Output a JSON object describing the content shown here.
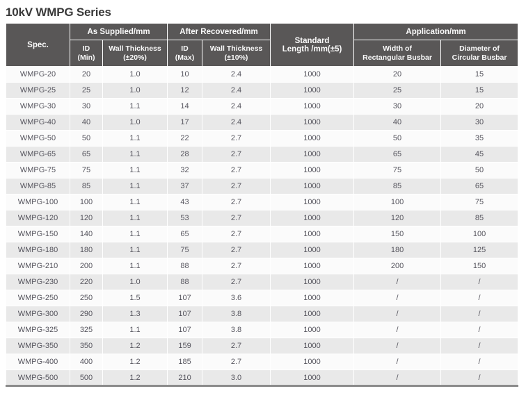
{
  "page_title": "10kV WMPG Series",
  "table": {
    "header_groups": {
      "spec": "Spec.",
      "as_supplied": "As Supplied/mm",
      "after_recovered": "After Recovered/mm",
      "standard_length": [
        "Standard",
        "Length /mm(±5)"
      ],
      "application": "Application/mm"
    },
    "sub_headers": {
      "id_min": [
        "ID",
        "(Min)"
      ],
      "wall_thickness_20": [
        "Wall Thickness",
        "(±20%)"
      ],
      "id_max": [
        "ID",
        "(Max)"
      ],
      "wall_thickness_10": [
        "Wall Thickness",
        "(±10%)"
      ],
      "width_rect": [
        "Width of",
        "Rectangular Busbar"
      ],
      "diameter_circ": [
        "Diameter of",
        "Circular Busbar"
      ]
    },
    "rows": [
      [
        "WMPG-20",
        "20",
        "1.0",
        "10",
        "2.4",
        "1000",
        "20",
        "15"
      ],
      [
        "WMPG-25",
        "25",
        "1.0",
        "12",
        "2.4",
        "1000",
        "25",
        "15"
      ],
      [
        "WMPG-30",
        "30",
        "1.1",
        "14",
        "2.4",
        "1000",
        "30",
        "20"
      ],
      [
        "WMPG-40",
        "40",
        "1.0",
        "17",
        "2.4",
        "1000",
        "40",
        "30"
      ],
      [
        "WMPG-50",
        "50",
        "1.1",
        "22",
        "2.7",
        "1000",
        "50",
        "35"
      ],
      [
        "WMPG-65",
        "65",
        "1.1",
        "28",
        "2.7",
        "1000",
        "65",
        "45"
      ],
      [
        "WMPG-75",
        "75",
        "1.1",
        "32",
        "2.7",
        "1000",
        "75",
        "50"
      ],
      [
        "WMPG-85",
        "85",
        "1.1",
        "37",
        "2.7",
        "1000",
        "85",
        "65"
      ],
      [
        "WMPG-100",
        "100",
        "1.1",
        "43",
        "2.7",
        "1000",
        "100",
        "75"
      ],
      [
        "WMPG-120",
        "120",
        "1.1",
        "53",
        "2.7",
        "1000",
        "120",
        "85"
      ],
      [
        "WMPG-150",
        "140",
        "1.1",
        "65",
        "2.7",
        "1000",
        "150",
        "100"
      ],
      [
        "WMPG-180",
        "180",
        "1.1",
        "75",
        "2.7",
        "1000",
        "180",
        "125"
      ],
      [
        "WMPG-210",
        "200",
        "1.1",
        "88",
        "2.7",
        "1000",
        "200",
        "150"
      ],
      [
        "WMPG-230",
        "220",
        "1.0",
        "88",
        "2.7",
        "1000",
        "/",
        "/"
      ],
      [
        "WMPG-250",
        "250",
        "1.5",
        "107",
        "3.6",
        "1000",
        "/",
        "/"
      ],
      [
        "WMPG-300",
        "290",
        "1.3",
        "107",
        "3.8",
        "1000",
        "/",
        "/"
      ],
      [
        "WMPG-325",
        "325",
        "1.1",
        "107",
        "3.8",
        "1000",
        "/",
        "/"
      ],
      [
        "WMPG-350",
        "350",
        "1.2",
        "159",
        "2.7",
        "1000",
        "/",
        "/"
      ],
      [
        "WMPG-400",
        "400",
        "1.2",
        "185",
        "2.7",
        "1000",
        "/",
        "/"
      ],
      [
        "WMPG-500",
        "500",
        "1.2",
        "210",
        "3.0",
        "1000",
        "/",
        "/"
      ]
    ]
  },
  "colors": {
    "header_bg": "#595757",
    "header_text": "#fafafa",
    "row_base": "#fbfbfb",
    "row_alt": "#e9e9e9",
    "body_text": "#54535c",
    "title_text": "#3a3a3a",
    "bottom_border": "#8c8c8c"
  }
}
